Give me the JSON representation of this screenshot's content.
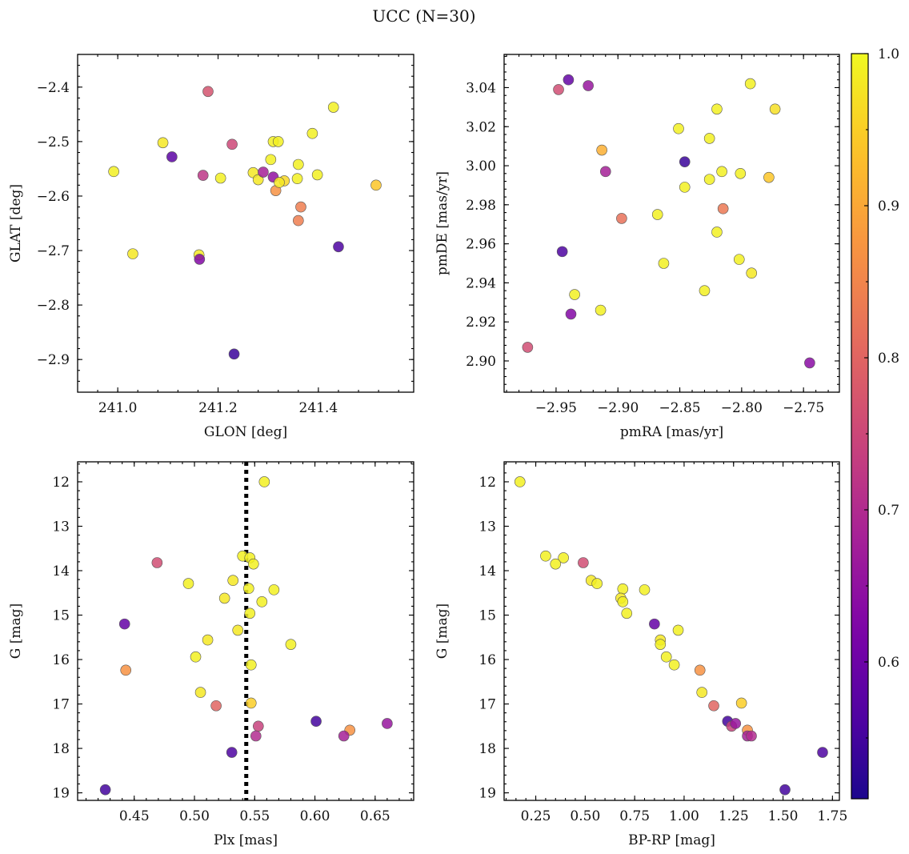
{
  "title": "UCC (N=30)",
  "colorbar": {
    "min": 0.51,
    "max": 1.0,
    "ticks": [
      0.6,
      0.7,
      0.8,
      0.9,
      1.0
    ],
    "tick_labels": [
      "0.6",
      "0.7",
      "0.8",
      "0.9",
      "1.0"
    ],
    "colormap": "plasma"
  },
  "chart_data": [
    {
      "type": "scatter",
      "id": "glon-glat",
      "xlabel": "GLON [deg]",
      "ylabel": "GLAT [deg]",
      "xlim": [
        240.92,
        241.59
      ],
      "ylim": [
        -2.96,
        -2.34
      ],
      "xticks": [
        241.0,
        241.2,
        241.4
      ],
      "xtick_labels": [
        "241.0",
        "241.2",
        "241.4"
      ],
      "yticks": [
        -2.4,
        -2.5,
        -2.6,
        -2.7,
        -2.8,
        -2.9
      ],
      "ytick_labels": [
        "−2.4",
        "−2.5",
        "−2.6",
        "−2.7",
        "−2.8",
        "−2.9"
      ],
      "x": [
        240.992,
        241.18,
        241.108,
        241.09,
        241.03,
        241.17,
        241.205,
        241.228,
        241.27,
        241.28,
        241.29,
        241.305,
        241.31,
        241.32,
        241.31,
        241.315,
        241.332,
        241.36,
        241.358,
        241.365,
        241.36,
        241.388,
        241.398,
        241.43,
        241.44,
        241.515,
        241.162,
        241.163,
        241.232,
        241.322
      ],
      "y": [
        -2.555,
        -2.408,
        -2.528,
        -2.502,
        -2.706,
        -2.562,
        -2.567,
        -2.505,
        -2.557,
        -2.57,
        -2.556,
        -2.533,
        -2.5,
        -2.5,
        -2.565,
        -2.59,
        -2.572,
        -2.542,
        -2.568,
        -2.62,
        -2.645,
        -2.485,
        -2.561,
        -2.437,
        -2.693,
        -2.58,
        -2.708,
        -2.716,
        -2.89,
        -2.575
      ],
      "c": [
        0.99,
        0.77,
        0.58,
        0.98,
        0.98,
        0.72,
        0.99,
        0.75,
        0.98,
        0.98,
        0.68,
        0.99,
        0.99,
        0.99,
        0.65,
        0.87,
        0.96,
        0.99,
        0.99,
        0.84,
        0.84,
        0.99,
        0.99,
        0.99,
        0.56,
        0.94,
        0.98,
        0.63,
        0.54,
        0.98
      ]
    },
    {
      "type": "scatter",
      "id": "pmra-pmde",
      "xlabel": "pmRA [mas/yr]",
      "ylabel": "pmDE [mas/yr]",
      "xlim": [
        -2.992,
        -2.721
      ],
      "ylim": [
        2.884,
        3.057
      ],
      "xticks": [
        -2.95,
        -2.9,
        -2.85,
        -2.8,
        -2.75
      ],
      "xtick_labels": [
        "−2.95",
        "−2.90",
        "−2.85",
        "−2.80",
        "−2.75"
      ],
      "yticks": [
        2.9,
        2.92,
        2.94,
        2.96,
        2.98,
        3.0,
        3.02,
        3.04
      ],
      "ytick_labels": [
        "2.90",
        "2.92",
        "2.94",
        "2.96",
        "2.98",
        "3.00",
        "3.02",
        "3.04"
      ],
      "x": [
        -2.948,
        -2.94,
        -2.924,
        -2.913,
        -2.91,
        -2.846,
        -2.897,
        -2.868,
        -2.851,
        -2.846,
        -2.826,
        -2.82,
        -2.826,
        -2.816,
        -2.801,
        -2.778,
        -2.793,
        -2.773,
        -2.815,
        -2.82,
        -2.863,
        -2.802,
        -2.83,
        -2.792,
        -2.945,
        -2.935,
        -2.938,
        -2.914,
        -2.973,
        -2.745
      ],
      "y": [
        3.039,
        3.044,
        3.041,
        3.008,
        2.997,
        3.002,
        2.973,
        2.975,
        3.019,
        2.989,
        3.014,
        3.029,
        2.993,
        2.997,
        2.996,
        2.994,
        3.042,
        3.029,
        2.978,
        2.966,
        2.95,
        2.952,
        2.936,
        2.945,
        2.956,
        2.934,
        2.924,
        2.926,
        2.907,
        2.899
      ],
      "c": [
        0.76,
        0.59,
        0.66,
        0.91,
        0.68,
        0.54,
        0.82,
        0.99,
        0.99,
        0.99,
        0.99,
        0.99,
        0.99,
        0.99,
        0.99,
        0.94,
        0.99,
        0.97,
        0.83,
        0.99,
        0.99,
        0.99,
        0.99,
        0.98,
        0.56,
        0.99,
        0.63,
        0.99,
        0.76,
        0.64
      ]
    },
    {
      "type": "scatter",
      "id": "plx-g",
      "xlabel": "Plx [mas]",
      "ylabel": "G [mag]",
      "xlim": [
        0.403,
        0.682
      ],
      "ylim": [
        19.17,
        11.55
      ],
      "xticks": [
        0.45,
        0.5,
        0.55,
        0.6,
        0.65
      ],
      "xtick_labels": [
        "0.45",
        "0.50",
        "0.55",
        "0.60",
        "0.65"
      ],
      "yticks": [
        12,
        13,
        14,
        15,
        16,
        17,
        18,
        19
      ],
      "ytick_labels": [
        "12",
        "13",
        "14",
        "15",
        "16",
        "17",
        "18",
        "19"
      ],
      "vline": 0.543,
      "x": [
        0.558,
        0.54,
        0.546,
        0.549,
        0.532,
        0.566,
        0.495,
        0.469,
        0.545,
        0.525,
        0.556,
        0.546,
        0.536,
        0.442,
        0.511,
        0.58,
        0.501,
        0.547,
        0.443,
        0.505,
        0.547,
        0.518,
        0.553,
        0.601,
        0.629,
        0.66,
        0.551,
        0.624,
        0.531,
        0.426
      ],
      "y": [
        12.0,
        13.67,
        13.71,
        13.85,
        14.22,
        14.43,
        14.29,
        13.82,
        14.4,
        14.62,
        14.7,
        14.96,
        15.34,
        15.2,
        15.56,
        15.66,
        15.94,
        16.12,
        16.24,
        16.74,
        16.98,
        17.04,
        17.5,
        17.39,
        17.59,
        17.44,
        17.72,
        17.72,
        18.09,
        18.93
      ],
      "c": [
        0.99,
        0.99,
        0.99,
        0.99,
        0.98,
        0.99,
        0.99,
        0.76,
        0.99,
        0.98,
        0.99,
        0.99,
        0.98,
        0.59,
        0.98,
        0.99,
        0.99,
        0.99,
        0.87,
        0.98,
        0.95,
        0.8,
        0.74,
        0.55,
        0.87,
        0.66,
        0.7,
        0.68,
        0.56,
        0.55
      ]
    },
    {
      "type": "scatter",
      "id": "bprp-g",
      "xlabel": "BP-RP [mag]",
      "ylabel": "G [mag]",
      "xlim": [
        0.09,
        1.785
      ],
      "ylim": [
        19.17,
        11.55
      ],
      "xticks": [
        0.25,
        0.5,
        0.75,
        1.0,
        1.25,
        1.5,
        1.75
      ],
      "xtick_labels": [
        "0.25",
        "0.50",
        "0.75",
        "1.00",
        "1.25",
        "1.50",
        "1.75"
      ],
      "yticks": [
        12,
        13,
        14,
        15,
        16,
        17,
        18,
        19
      ],
      "ytick_labels": [
        "12",
        "13",
        "14",
        "15",
        "16",
        "17",
        "18",
        "19"
      ],
      "x": [
        0.17,
        0.3,
        0.39,
        0.35,
        0.49,
        0.53,
        0.56,
        0.69,
        0.8,
        0.68,
        0.69,
        0.71,
        0.97,
        0.85,
        0.88,
        0.88,
        0.91,
        0.95,
        1.08,
        1.09,
        1.15,
        1.29,
        1.22,
        1.24,
        1.26,
        1.32,
        1.32,
        1.34,
        1.7,
        1.51
      ],
      "y": [
        12.0,
        13.67,
        13.71,
        13.85,
        13.82,
        14.22,
        14.29,
        14.41,
        14.43,
        14.62,
        14.7,
        14.96,
        15.34,
        15.2,
        15.56,
        15.66,
        15.94,
        16.12,
        16.24,
        16.74,
        17.04,
        16.98,
        17.39,
        17.5,
        17.44,
        17.59,
        17.72,
        17.72,
        18.09,
        18.93
      ],
      "c": [
        0.99,
        0.99,
        0.99,
        0.99,
        0.76,
        0.98,
        0.99,
        0.99,
        0.99,
        0.98,
        0.99,
        0.99,
        0.99,
        0.59,
        0.98,
        0.99,
        0.99,
        0.99,
        0.87,
        0.98,
        0.8,
        0.95,
        0.55,
        0.74,
        0.66,
        0.87,
        0.68,
        0.7,
        0.56,
        0.55
      ]
    }
  ]
}
